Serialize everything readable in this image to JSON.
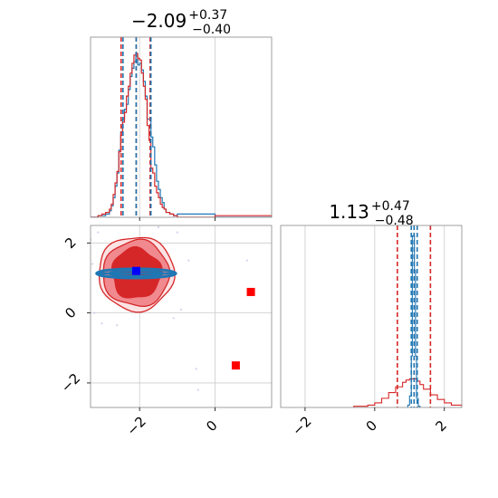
{
  "colors": {
    "red": "#d62728",
    "blue": "#1f77b4",
    "red_fill_inner": "#d62728",
    "red_fill_outer": "#f08a8f",
    "marker_red": "#ff0000",
    "marker_blue": "#0000ff",
    "grid": "#cccccc",
    "frame": "#888888"
  },
  "chart_data": {
    "type": "corner",
    "grid": true,
    "params": [
      {
        "title_main": "−2.09",
        "title_sup": "+0.37",
        "title_sub": "−0.40",
        "median": -2.09,
        "range": [
          -3.3,
          1.5
        ],
        "ticks": [
          -2,
          0
        ],
        "tick_labels": [
          "−2",
          "0"
        ],
        "quantiles_red": [
          -2.49,
          -2.09,
          -1.72
        ],
        "quantiles_blue": [
          -2.44,
          -2.09,
          -1.7
        ]
      },
      {
        "title_main": "1.13",
        "title_sup": "+0.47",
        "title_sub": "−0.48",
        "median": 1.13,
        "range": [
          -2.7,
          2.5
        ],
        "ticks": [
          -2,
          0,
          2
        ],
        "tick_labels": [
          "−2",
          "0",
          "2"
        ],
        "quantiles_red": [
          0.65,
          1.13,
          1.6
        ],
        "quantiles_blue": [
          1.05,
          1.13,
          1.22
        ]
      }
    ],
    "hist1_red": {
      "bin_edges": [
        -3.3,
        -3.1,
        -3.0,
        -2.9,
        -2.8,
        -2.75,
        -2.7,
        -2.65,
        -2.6,
        -2.55,
        -2.5,
        -2.45,
        -2.4,
        -2.35,
        -2.3,
        -2.25,
        -2.2,
        -2.15,
        -2.1,
        -2.05,
        -2.0,
        -1.95,
        -1.9,
        -1.85,
        -1.8,
        -1.75,
        -1.7,
        -1.65,
        -1.6,
        -1.55,
        -1.5,
        -1.45,
        -1.4,
        -1.35,
        -1.3,
        -1.2,
        -1.1,
        -1.0,
        0.0,
        1.5
      ],
      "counts": [
        0,
        1,
        2,
        3,
        5,
        8,
        14,
        21,
        28,
        40,
        50,
        58,
        64,
        74,
        80,
        88,
        94,
        99,
        100,
        97,
        96,
        88,
        80,
        72,
        56,
        47,
        30,
        27,
        19,
        15,
        12,
        8,
        6,
        5,
        3,
        2,
        1,
        0,
        1
      ]
    },
    "hist1_blue": {
      "bin_edges": [
        -3.3,
        -3.1,
        -3.0,
        -2.9,
        -2.8,
        -2.75,
        -2.7,
        -2.65,
        -2.6,
        -2.55,
        -2.5,
        -2.45,
        -2.4,
        -2.35,
        -2.3,
        -2.25,
        -2.2,
        -2.15,
        -2.1,
        -2.05,
        -2.0,
        -1.95,
        -1.9,
        -1.85,
        -1.8,
        -1.75,
        -1.7,
        -1.65,
        -1.6,
        -1.55,
        -1.5,
        -1.45,
        -1.4,
        -1.35,
        -1.3,
        -1.2,
        -1.1,
        -1.0,
        0.0,
        1.5
      ],
      "counts": [
        0,
        1,
        1,
        2,
        4,
        7,
        12,
        19,
        27,
        41,
        52,
        60,
        66,
        69,
        78,
        86,
        91,
        95,
        98,
        93,
        94,
        90,
        83,
        74,
        60,
        60,
        49,
        43,
        32,
        22,
        17,
        12,
        9,
        5,
        3,
        2,
        1,
        2,
        0
      ]
    },
    "hist2_red": {
      "bin_edges": [
        -0.6,
        -0.2,
        0.0,
        0.2,
        0.4,
        0.6,
        0.8,
        0.9,
        1.0,
        1.1,
        1.2,
        1.3,
        1.4,
        1.6,
        1.8,
        2.0,
        2.2,
        2.5
      ],
      "counts": [
        1,
        2,
        4,
        8,
        13,
        18,
        22,
        24,
        25,
        25,
        23,
        20,
        16,
        11,
        7,
        4,
        2
      ]
    },
    "hist2_blue": {
      "bin_edges": [
        0.95,
        1.0,
        1.05,
        1.08,
        1.11,
        1.14,
        1.17,
        1.2,
        1.25,
        1.3
      ],
      "counts": [
        2,
        10,
        45,
        150,
        150,
        120,
        45,
        8,
        1
      ]
    },
    "hist2_max": 150,
    "joint": {
      "red_contour_outer": {
        "cx": -2.09,
        "cy": 1.13,
        "rx": 1.0,
        "ry": 1.06
      },
      "red_contour_mid": {
        "cx": -2.09,
        "cy": 1.13,
        "rx": 0.88,
        "ry": 0.94
      },
      "red_contour_inner": {
        "cx": -2.09,
        "cy": 1.13,
        "rx": 0.65,
        "ry": 0.72
      },
      "blue_contour": {
        "cx": -2.09,
        "cy": 1.13,
        "rx": 1.05,
        "ry": 0.13
      },
      "blue_marker": {
        "x": -2.09,
        "y": 1.2
      },
      "red_markers": [
        {
          "x": 0.95,
          "y": 0.6
        },
        {
          "x": 0.55,
          "y": -1.5
        }
      ],
      "scatter_points": [
        {
          "x": -3.3,
          "y": 2.1
        },
        {
          "x": -3.2,
          "y": 0.0
        },
        {
          "x": -3.1,
          "y": 2.3
        },
        {
          "x": -3.0,
          "y": -0.3
        },
        {
          "x": -1.0,
          "y": 2.3
        },
        {
          "x": -0.9,
          "y": 0.1
        },
        {
          "x": -0.7,
          "y": 1.5
        },
        {
          "x": -3.25,
          "y": 1.4
        },
        {
          "x": -1.1,
          "y": -0.15
        },
        {
          "x": -2.6,
          "y": -0.35
        },
        {
          "x": -1.5,
          "y": 2.45
        },
        {
          "x": -0.45,
          "y": -2.2
        },
        {
          "x": -0.5,
          "y": -1.6
        },
        {
          "x": 0.85,
          "y": 1.5
        }
      ]
    }
  }
}
